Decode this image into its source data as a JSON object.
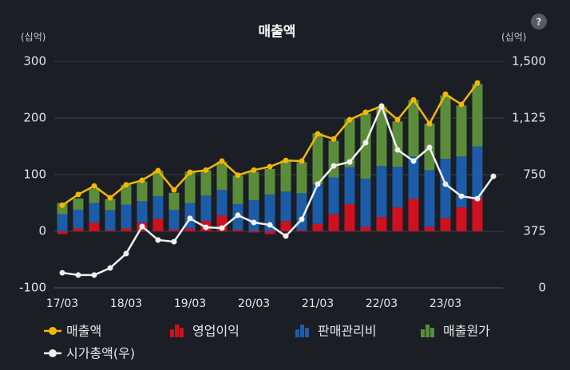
{
  "chart_data": {
    "type": "bar",
    "title": "매출액",
    "help_icon": "?",
    "y_unit": "(십억)",
    "y2_unit": "(십억)",
    "categories": [
      "17/03",
      null,
      null,
      null,
      "18/03",
      null,
      null,
      null,
      "19/03",
      null,
      null,
      null,
      "20/03",
      null,
      null,
      null,
      "21/03",
      null,
      null,
      null,
      "22/03",
      null,
      null,
      null,
      "23/03",
      null,
      null,
      null
    ],
    "ylim": [
      -100,
      300
    ],
    "yticks": [
      -100,
      0,
      100,
      200,
      300
    ],
    "y2lim": [
      0,
      1500
    ],
    "y2ticks": [
      0,
      375,
      750,
      {
        "value": 1125,
        "label": "1,125"
      },
      {
        "value": 1500,
        "label": "1,500"
      }
    ],
    "grid": true,
    "series": [
      {
        "name": "매출액",
        "type": "line",
        "axis": "y",
        "color": "#f2b705",
        "values": [
          46,
          65,
          80,
          59,
          82,
          90,
          107,
          73,
          104,
          108,
          124,
          99,
          108,
          114,
          125,
          124,
          172,
          163,
          197,
          210,
          221,
          197,
          232,
          190,
          242,
          224,
          262,
          null
        ]
      },
      {
        "name": "영업이익",
        "type": "bar",
        "axis": "y",
        "color": "#d0101e",
        "values": [
          -5,
          5,
          15,
          2,
          5,
          15,
          22,
          3,
          5,
          18,
          28,
          3,
          -2,
          -5,
          18,
          2,
          13,
          30,
          48,
          8,
          25,
          42,
          57,
          8,
          23,
          42,
          58,
          null
        ]
      },
      {
        "name": "판매관리비",
        "type": "bar",
        "axis": "y",
        "color": "#1c5ca8",
        "values": [
          30,
          33,
          35,
          35,
          42,
          38,
          40,
          35,
          45,
          45,
          45,
          45,
          55,
          65,
          52,
          65,
          70,
          65,
          65,
          85,
          90,
          72,
          75,
          100,
          105,
          90,
          92,
          null
        ]
      },
      {
        "name": "매출원가",
        "type": "bar",
        "axis": "y",
        "color": "#5b8c3a",
        "values": [
          20,
          20,
          25,
          20,
          35,
          35,
          45,
          30,
          55,
          45,
          50,
          50,
          50,
          45,
          55,
          55,
          90,
          65,
          85,
          115,
          105,
          80,
          100,
          82,
          112,
          90,
          110,
          null
        ]
      },
      {
        "name": "시가총액(우)",
        "type": "line",
        "axis": "y2",
        "color": "#f0f0f0",
        "values": [
          100,
          85,
          85,
          132,
          227,
          407,
          317,
          306,
          460,
          401,
          396,
          481,
          433,
          417,
          343,
          454,
          687,
          808,
          834,
          961,
          1204,
          914,
          840,
          930,
          687,
          607,
          591,
          739
        ]
      }
    ]
  }
}
